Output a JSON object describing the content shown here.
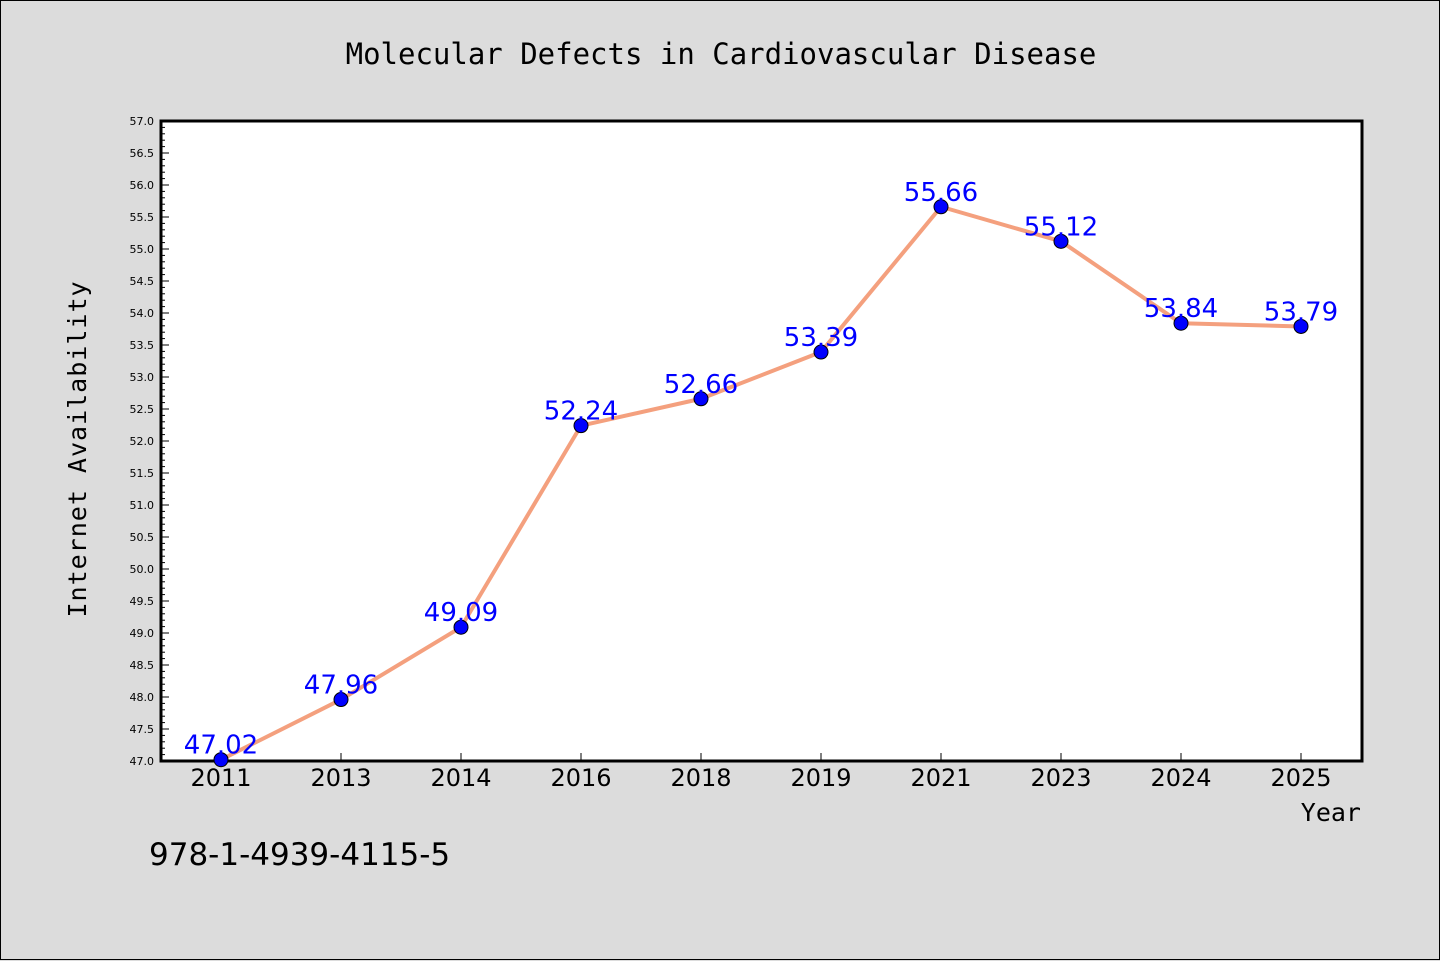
{
  "chart_data": {
    "type": "line",
    "title": "Molecular Defects in Cardiovascular Disease",
    "xlabel": "Year",
    "ylabel": "Internet Availability",
    "categories": [
      "2011",
      "2013",
      "2014",
      "2016",
      "2018",
      "2019",
      "2021",
      "2023",
      "2024",
      "2025"
    ],
    "values": [
      47.02,
      47.96,
      49.09,
      52.24,
      52.66,
      53.39,
      55.66,
      55.12,
      53.84,
      53.79
    ],
    "data_labels": [
      "47.02",
      "47.96",
      "49.09",
      "52.24",
      "52.66",
      "53.39",
      "55.66",
      "55.12",
      "53.84",
      "53.79"
    ],
    "ylim": [
      47.0,
      57.0
    ],
    "yticks": [
      "47.0",
      "47.5",
      "48.0",
      "48.5",
      "49.0",
      "49.5",
      "50.0",
      "50.5",
      "51.0",
      "51.5",
      "52.0",
      "52.5",
      "53.0",
      "53.5",
      "54.0",
      "54.5",
      "55.0",
      "55.5",
      "56.0",
      "56.5",
      "57.0"
    ],
    "grid": false,
    "line_color": "#f4a07e",
    "marker_color": "#0000ff",
    "label_color": "#0000ff"
  },
  "footer": {
    "isbn": "978-1-4939-4115-5"
  }
}
